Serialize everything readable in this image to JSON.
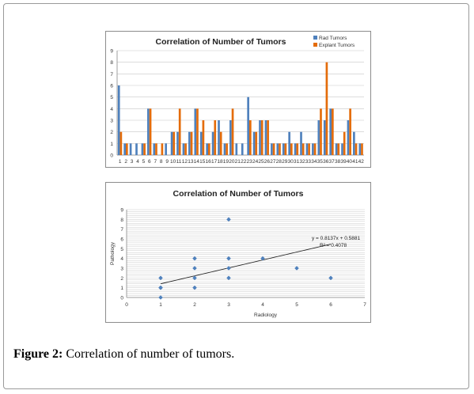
{
  "caption": {
    "label": "Figure 2:",
    "text": " Correlation of number of tumors."
  },
  "colors": {
    "rad": "#4f81bd",
    "explant": "#e46c0a",
    "trend": "#222222",
    "grid": "#c8c8c8"
  },
  "chart_data": [
    {
      "type": "bar",
      "title": "Correlation of Number of Tumors",
      "xlabel": "",
      "ylabel": "",
      "ylim": [
        0,
        9
      ],
      "yticks": [
        0,
        1,
        2,
        3,
        4,
        5,
        6,
        7,
        8,
        9
      ],
      "grid": true,
      "legend_position": "top-right",
      "categories": [
        "1",
        "2",
        "3",
        "4",
        "5",
        "6",
        "7",
        "8",
        "9",
        "10",
        "11",
        "12",
        "13",
        "14",
        "15",
        "16",
        "17",
        "18",
        "19",
        "20",
        "21",
        "22",
        "23",
        "24",
        "25",
        "26",
        "27",
        "28",
        "29",
        "30",
        "31",
        "32",
        "33",
        "34",
        "35",
        "36",
        "37",
        "38",
        "39",
        "40",
        "41",
        "42"
      ],
      "series": [
        {
          "name": "Rad Tumors",
          "values": [
            6,
            1,
            1,
            1,
            1,
            4,
            1,
            0,
            1,
            2,
            2,
            1,
            2,
            4,
            2,
            1,
            2,
            3,
            1,
            3,
            1,
            1,
            5,
            2,
            3,
            3,
            1,
            1,
            1,
            2,
            1,
            2,
            1,
            1,
            3,
            3,
            4,
            1,
            1,
            3,
            2,
            1
          ]
        },
        {
          "name": "Explant Tumors",
          "values": [
            2,
            1,
            0,
            0,
            1,
            4,
            1,
            1,
            0,
            2,
            4,
            1,
            2,
            4,
            3,
            1,
            3,
            2,
            1,
            4,
            0,
            0,
            3,
            2,
            3,
            3,
            1,
            1,
            1,
            1,
            1,
            1,
            1,
            1,
            4,
            8,
            4,
            1,
            2,
            4,
            1,
            1
          ]
        }
      ]
    },
    {
      "type": "scatter",
      "title": "Correlation of Number of Tumors",
      "xlabel": "Radiology",
      "ylabel": "Pathology",
      "xlim": [
        0,
        7
      ],
      "ylim": [
        0,
        9
      ],
      "xticks": [
        0,
        1,
        2,
        3,
        4,
        5,
        6,
        7
      ],
      "yticks": [
        0,
        1,
        2,
        3,
        4,
        5,
        6,
        7,
        8,
        9
      ],
      "grid": true,
      "points": [
        {
          "x": 1,
          "y": 0
        },
        {
          "x": 1,
          "y": 1
        },
        {
          "x": 1,
          "y": 1
        },
        {
          "x": 1,
          "y": 2
        },
        {
          "x": 2,
          "y": 1
        },
        {
          "x": 2,
          "y": 2
        },
        {
          "x": 2,
          "y": 3
        },
        {
          "x": 2,
          "y": 4
        },
        {
          "x": 3,
          "y": 2
        },
        {
          "x": 3,
          "y": 3
        },
        {
          "x": 3,
          "y": 4
        },
        {
          "x": 3,
          "y": 8
        },
        {
          "x": 4,
          "y": 4
        },
        {
          "x": 5,
          "y": 3
        },
        {
          "x": 6,
          "y": 2
        }
      ],
      "trendline": {
        "slope": 0.8137,
        "intercept": 0.5881,
        "x_range": [
          1,
          6
        ]
      },
      "equation": "y = 0.8137x + 0.5881",
      "r_squared": "R² = 0.4078"
    }
  ]
}
